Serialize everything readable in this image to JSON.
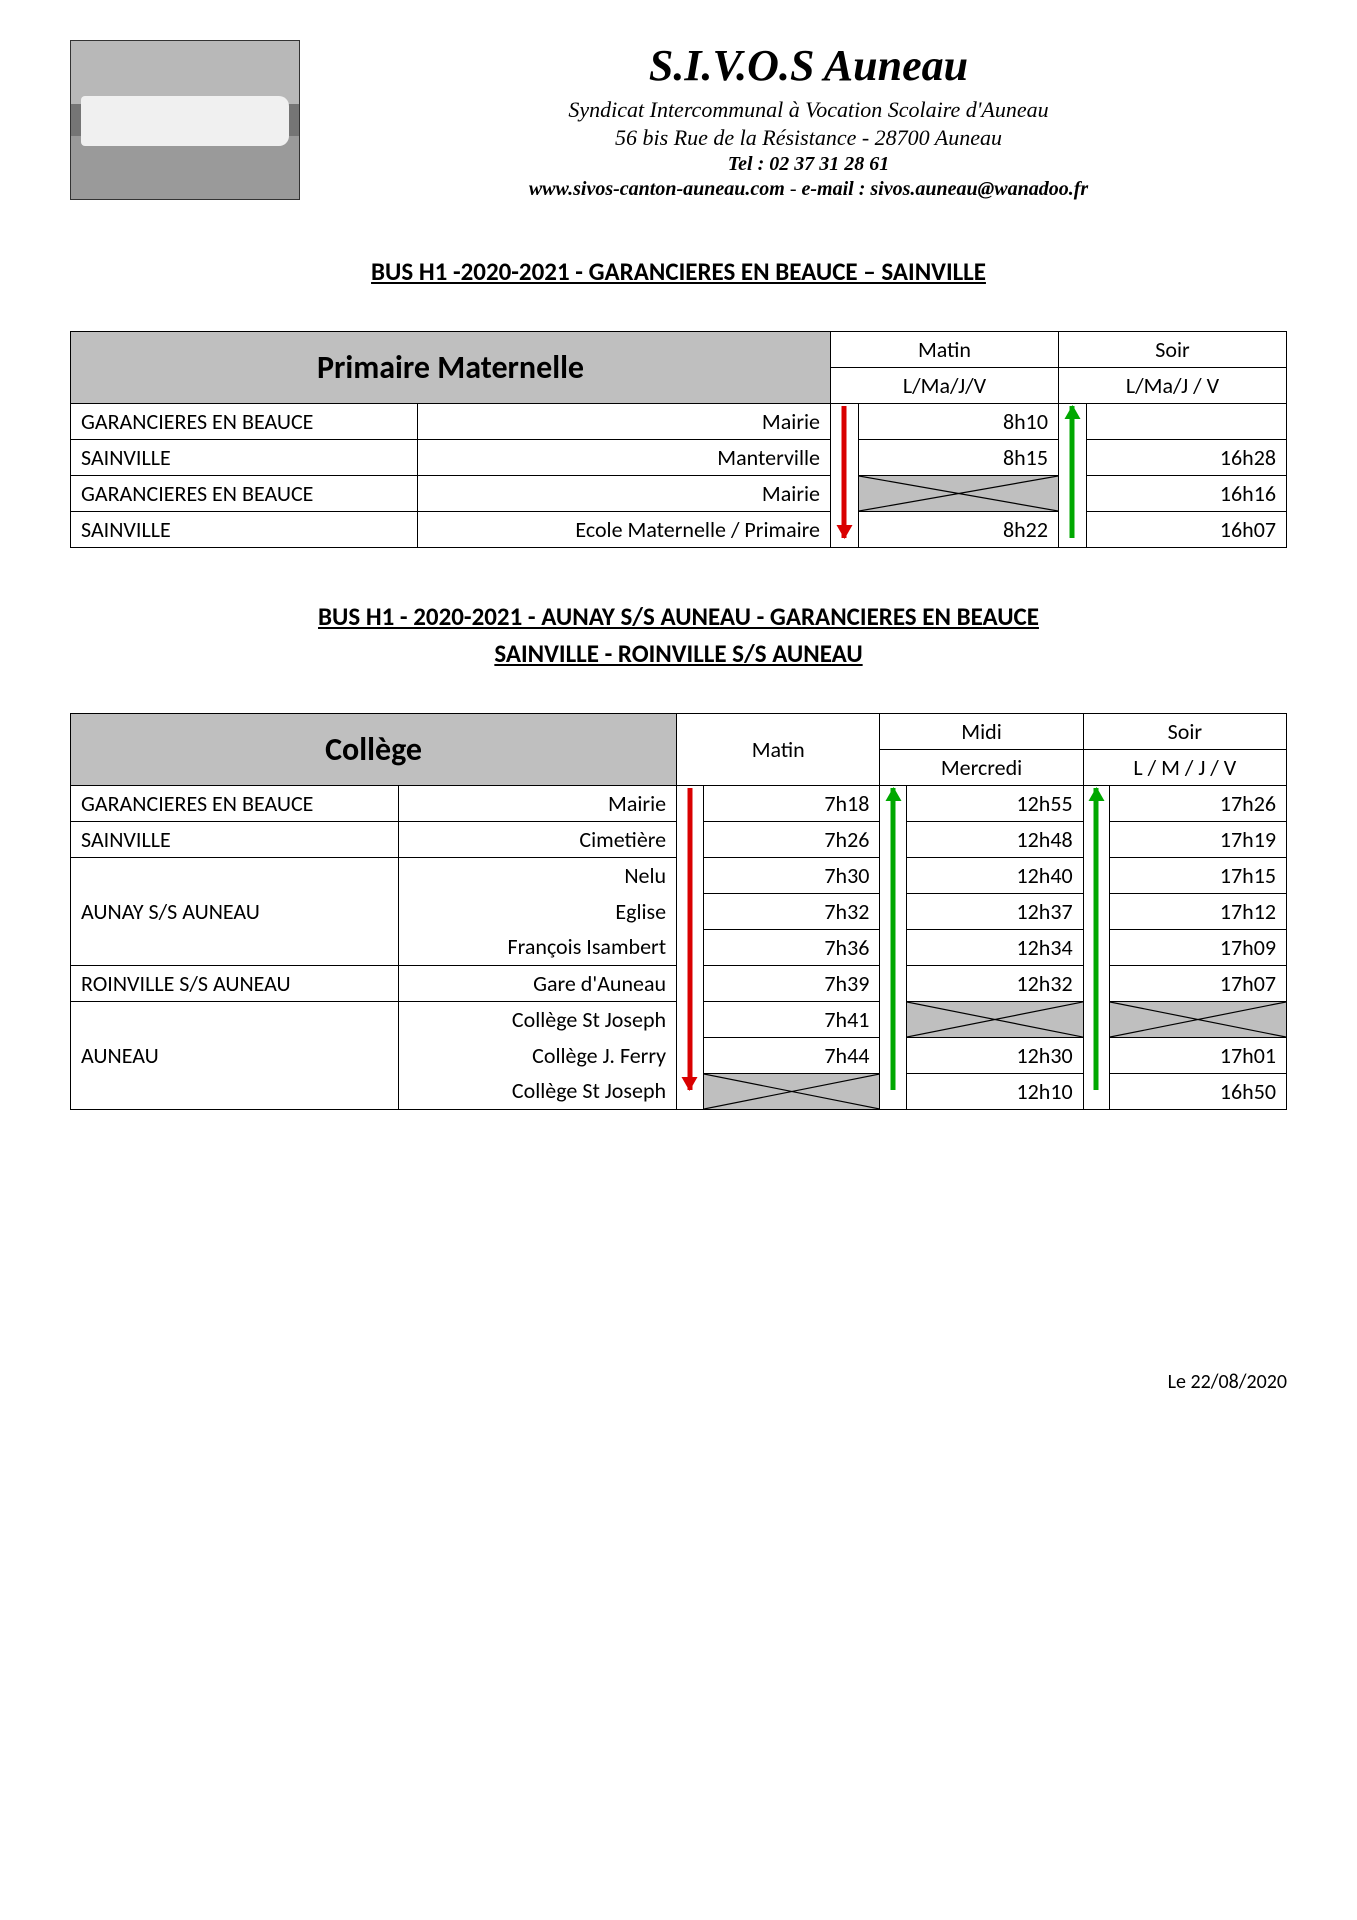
{
  "header": {
    "org_title": "S.I.V.O.S Auneau",
    "subtitle1": "Syndicat Intercommunal à Vocation Scolaire d'Auneau",
    "subtitle2": "56 bis Rue de la Résistance  - 28700 Auneau",
    "tel": "Tel : 02 37 31 28 61",
    "website": "www.sivos-canton-auneau.com",
    "email_label": "e-mail : sivos.auneau@wanadoo.fr"
  },
  "section1": {
    "title": "BUS H1  -2020-2021  -  GARANCIERES EN BEAUCE  –  SAINVILLE",
    "table": {
      "main_header": "Primaire Maternelle",
      "col_matin_top": "Matin",
      "col_matin_sub": "L/Ma/J/V",
      "col_soir_top": "Soir",
      "col_soir_sub": "L/Ma/J / V",
      "rows": [
        {
          "city": "GARANCIERES EN BEAUCE",
          "stop": "Mairie",
          "matin": "8h10",
          "soir": "",
          "soir_crossed": false
        },
        {
          "city": "SAINVILLE",
          "stop": "Manterville",
          "matin": "8h15",
          "soir": "16h28",
          "soir_crossed": false
        },
        {
          "city": "GARANCIERES EN BEAUCE",
          "stop": "Mairie",
          "matin": "",
          "matin_crossed": true,
          "soir": "16h16",
          "soir_crossed": false
        },
        {
          "city": "SAINVILLE",
          "stop": "Ecole Maternelle / Primaire",
          "matin": "8h22",
          "soir": "16h07",
          "soir_crossed": false
        }
      ],
      "arrows": {
        "matin": {
          "color": "red",
          "dir": "down"
        },
        "soir": {
          "color": "green",
          "dir": "up"
        }
      }
    }
  },
  "section2": {
    "title_l1": "BUS H1  - 2020-2021  -  AUNAY S/S AUNEAU  -  GARANCIERES EN BEAUCE",
    "title_l2": "SAINVILLE  -  ROINVILLE S/S AUNEAU",
    "table": {
      "main_header": "Collège",
      "col_matin": "Matin",
      "col_midi_top": "Midi",
      "col_midi_sub": "Mercredi",
      "col_soir_top": "Soir",
      "col_soir_sub": "L / M / J / V",
      "groups": [
        {
          "city": "GARANCIERES EN BEAUCE",
          "stops": [
            {
              "stop": "Mairie",
              "matin": "7h18",
              "midi": "12h55",
              "soir": "17h26"
            }
          ]
        },
        {
          "city": "SAINVILLE",
          "stops": [
            {
              "stop": "Cimetière",
              "matin": "7h26",
              "midi": "12h48",
              "soir": "17h19"
            }
          ]
        },
        {
          "city": "AUNAY S/S AUNEAU",
          "stops": [
            {
              "stop": "Nelu",
              "matin": "7h30",
              "midi": "12h40",
              "soir": "17h15"
            },
            {
              "stop": "Eglise",
              "matin": "7h32",
              "midi": "12h37",
              "soir": "17h12"
            },
            {
              "stop": "François Isambert",
              "matin": "7h36",
              "midi": "12h34",
              "soir": "17h09"
            }
          ]
        },
        {
          "city": "ROINVILLE S/S AUNEAU",
          "stops": [
            {
              "stop": "Gare d'Auneau",
              "matin": "7h39",
              "midi": "12h32",
              "soir": "17h07"
            }
          ]
        },
        {
          "city": "AUNEAU",
          "stops": [
            {
              "stop": "Collège St Joseph",
              "matin": "7h41",
              "midi": "",
              "midi_crossed": true,
              "soir": "",
              "soir_crossed": true
            },
            {
              "stop": "Collège J. Ferry",
              "matin": "7h44",
              "midi": "12h30",
              "soir": "17h01"
            },
            {
              "stop": "Collège St Joseph",
              "matin": "",
              "matin_crossed": true,
              "midi": "12h10",
              "soir": "16h50"
            }
          ]
        }
      ],
      "arrows": {
        "matin": {
          "color": "red",
          "dir": "down"
        },
        "midi": {
          "color": "green",
          "dir": "up"
        },
        "soir": {
          "color": "green",
          "dir": "up"
        }
      }
    }
  },
  "footer_date": "Le 22/08/2020",
  "colors": {
    "header_bg": "#bfbfbf",
    "red": "#d90000",
    "green": "#00a800",
    "text": "#000000",
    "page_bg": "#ffffff"
  },
  "typography": {
    "title_fontsize": 44,
    "section_title_fontsize": 25,
    "table_main_header_fontsize": 32,
    "body_fontsize": 22
  }
}
